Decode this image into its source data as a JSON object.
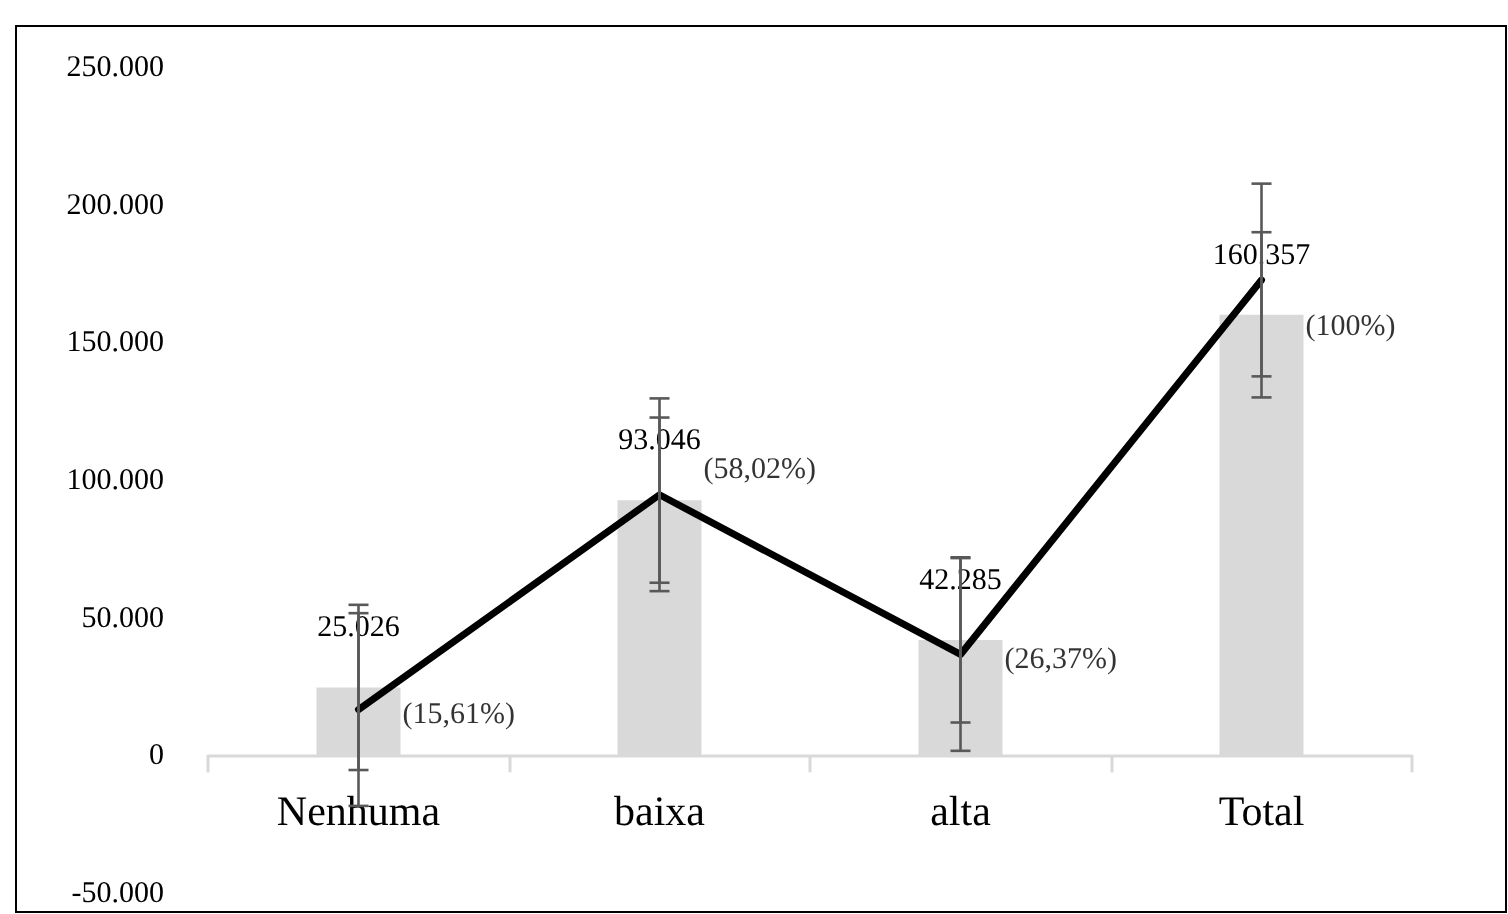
{
  "chart_data": {
    "type": "bar",
    "categories": [
      "Nenhuma",
      "baixa",
      "alta",
      "Total"
    ],
    "series": [
      {
        "color": "#d9d9d9",
        "values": [
          25026,
          93046,
          42285,
          160357
        ],
        "value_labels": [
          "25.026",
          "93.046",
          "42.285",
          "160.357"
        ],
        "errors": [
          30000,
          30000,
          30000,
          30000
        ]
      },
      {
        "type": "line",
        "color": "#000000",
        "values": [
          17000,
          95000,
          37000,
          173000
        ],
        "errors": [
          35000,
          35000,
          35000,
          35000
        ]
      }
    ],
    "annotations": [
      {
        "text": "(15,61%)",
        "x": "Nenhuma",
        "y": 15000
      },
      {
        "text": "(58,02%)",
        "x": "baixa",
        "y": 104000
      },
      {
        "text": "(26,37%)",
        "x": "alta",
        "y": 35000
      },
      {
        "text": "(100%)",
        "x": "Total",
        "y": 156000
      }
    ],
    "ylim": [
      -50000,
      250000
    ],
    "yticks": [
      {
        "value": -50000,
        "label": "-50.000"
      },
      {
        "value": 0,
        "label": "0"
      },
      {
        "value": 50000,
        "label": "50.000"
      },
      {
        "value": 100000,
        "label": "100.000"
      },
      {
        "value": 150000,
        "label": "150.000"
      },
      {
        "value": 200000,
        "label": "200.000"
      },
      {
        "value": 250000,
        "label": "250.000"
      }
    ],
    "marker": "none",
    "line_style": "solid"
  }
}
